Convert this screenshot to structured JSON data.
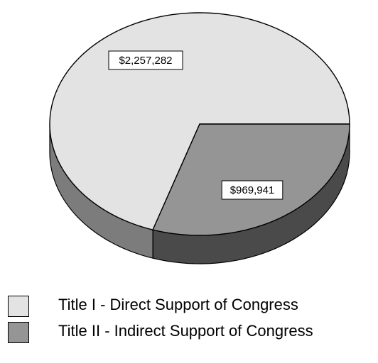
{
  "chart_data": {
    "type": "pie",
    "categories": [
      "Title I - Direct Support of Congress",
      "Title II - Indirect Support of Congress"
    ],
    "values": [
      2257282,
      969941
    ],
    "data_labels": [
      "$2,257,282",
      "$969,941"
    ],
    "colors": [
      "#e3e3e3",
      "#959595"
    ],
    "side_colors": [
      "#7c7c7c",
      "#4a4a4a"
    ],
    "style": "3d-pie",
    "legend_position": "bottom"
  }
}
